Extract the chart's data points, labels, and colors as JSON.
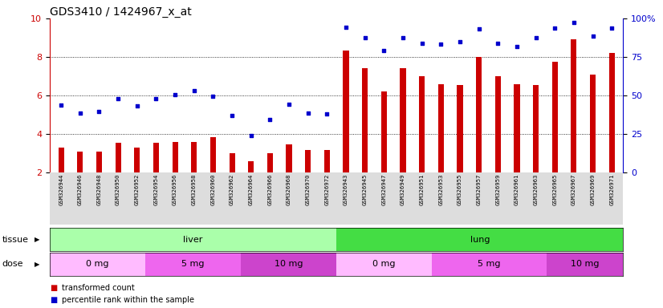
{
  "title": "GDS3410 / 1424967_x_at",
  "samples": [
    "GSM326944",
    "GSM326946",
    "GSM326948",
    "GSM326950",
    "GSM326952",
    "GSM326954",
    "GSM326956",
    "GSM326958",
    "GSM326960",
    "GSM326962",
    "GSM326964",
    "GSM326966",
    "GSM326968",
    "GSM326970",
    "GSM326972",
    "GSM326943",
    "GSM326945",
    "GSM326947",
    "GSM326949",
    "GSM326951",
    "GSM326953",
    "GSM326955",
    "GSM326957",
    "GSM326959",
    "GSM326961",
    "GSM326963",
    "GSM326965",
    "GSM326967",
    "GSM326969",
    "GSM326971"
  ],
  "bar_values": [
    3.3,
    3.1,
    3.1,
    3.55,
    3.3,
    3.55,
    3.6,
    3.6,
    3.85,
    3.0,
    2.6,
    3.0,
    3.45,
    3.15,
    3.15,
    8.35,
    7.4,
    6.2,
    7.4,
    7.0,
    6.6,
    6.55,
    8.0,
    7.0,
    6.6,
    6.55,
    7.75,
    8.9,
    7.1,
    8.2
  ],
  "dot_values": [
    5.5,
    5.1,
    5.15,
    5.85,
    5.45,
    5.85,
    6.05,
    6.25,
    5.95,
    4.95,
    3.9,
    4.75,
    5.55,
    5.1,
    5.05,
    9.55,
    9.0,
    8.35,
    9.0,
    8.7,
    8.65,
    8.8,
    9.45,
    8.7,
    8.55,
    9.0,
    9.5,
    9.8,
    9.1,
    9.5
  ],
  "bar_color": "#cc0000",
  "dot_color": "#0000cc",
  "ylim_left": [
    2,
    10
  ],
  "ylim_right": [
    0,
    100
  ],
  "yticks_left": [
    2,
    4,
    6,
    8,
    10
  ],
  "yticks_right": [
    0,
    25,
    50,
    75,
    100
  ],
  "tissue_groups": [
    {
      "label": "liver",
      "start": 0,
      "end": 15,
      "color": "#aaffaa"
    },
    {
      "label": "lung",
      "start": 15,
      "end": 30,
      "color": "#44dd44"
    }
  ],
  "dose_groups": [
    {
      "label": "0 mg",
      "start": 0,
      "end": 5,
      "color": "#ffbbff"
    },
    {
      "label": "5 mg",
      "start": 5,
      "end": 10,
      "color": "#ee66ee"
    },
    {
      "label": "10 mg",
      "start": 10,
      "end": 15,
      "color": "#cc44cc"
    },
    {
      "label": "0 mg",
      "start": 15,
      "end": 20,
      "color": "#ffbbff"
    },
    {
      "label": "5 mg",
      "start": 20,
      "end": 26,
      "color": "#ee66ee"
    },
    {
      "label": "10 mg",
      "start": 26,
      "end": 30,
      "color": "#cc44cc"
    }
  ],
  "legend_items": [
    {
      "label": "transformed count",
      "color": "#cc0000"
    },
    {
      "label": "percentile rank within the sample",
      "color": "#0000cc"
    }
  ],
  "tissue_label": "tissue",
  "dose_label": "dose",
  "plot_bg": "#ffffff",
  "xtick_bg": "#dddddd",
  "title_fontsize": 10,
  "tick_fontsize": 8,
  "bar_width": 0.3
}
